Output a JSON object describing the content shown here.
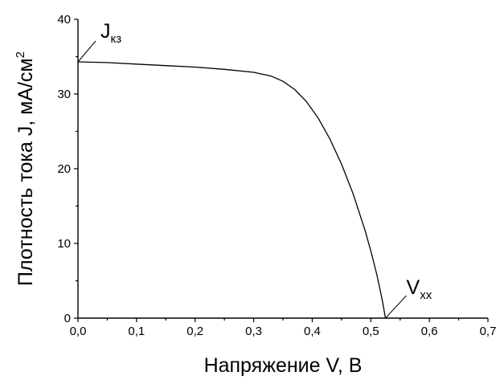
{
  "chart_data": {
    "type": "line",
    "title": "",
    "xlabel": "Напряжение V, В",
    "ylabel_main": "Плотность тока J, мА/см",
    "ylabel_sup": "2",
    "xlim": [
      0,
      0.7
    ],
    "ylim": [
      0,
      40
    ],
    "x_ticks": [
      0,
      0.1,
      0.2,
      0.3,
      0.4,
      0.5,
      0.6,
      0.7
    ],
    "x_tick_labels": [
      "0,0",
      "0,1",
      "0,2",
      "0,3",
      "0,4",
      "0,5",
      "0,6",
      "0,7"
    ],
    "y_ticks": [
      0,
      10,
      20,
      30,
      40
    ],
    "y_tick_labels": [
      "0",
      "10",
      "20",
      "30",
      "40"
    ],
    "grid": false,
    "series": [
      {
        "x": [
          0,
          0.05,
          0.1,
          0.15,
          0.2,
          0.25,
          0.3,
          0.33,
          0.35,
          0.37,
          0.39,
          0.41,
          0.43,
          0.45,
          0.47,
          0.49,
          0.5,
          0.51,
          0.515,
          0.52,
          0.525
        ],
        "y": [
          34.3,
          34.2,
          34.0,
          33.8,
          33.6,
          33.3,
          32.9,
          32.4,
          31.7,
          30.6,
          29.0,
          26.8,
          24.0,
          20.6,
          16.6,
          11.8,
          9.0,
          5.9,
          4.1,
          2.2,
          0
        ]
      }
    ],
    "annotations": [
      {
        "main": "J",
        "sub": "кз",
        "x": 0,
        "y": 34.3
      },
      {
        "main": "V",
        "sub": "хх",
        "x": 0.525,
        "y": 0
      }
    ]
  }
}
